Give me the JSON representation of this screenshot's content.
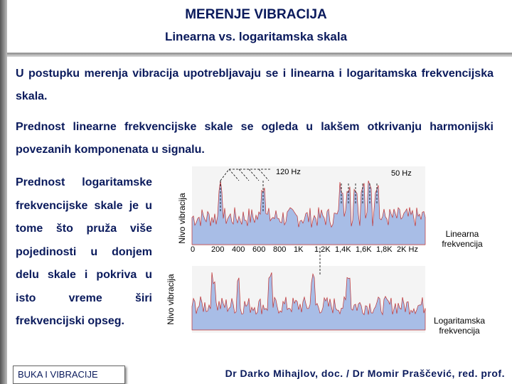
{
  "header": {
    "title": "MERENJE VIBRACIJA",
    "subtitle": "Linearna vs. logaritamska skala"
  },
  "paragraphs": [
    "U postupku merenja vibracija upotrebljavaju se i linearna i logaritamska frekvencijska skala.",
    "Prednost linearne frekvencijske skale se ogleda u lakšem otkrivanju harmonijski povezanih komponenata u signalu.",
    "Prednost logaritamske frekvencijske skale je u tome što pruža više pojedinosti u donjem delu skale i pokriva u isto vreme širi frekvencijski opseg."
  ],
  "figure": {
    "top": {
      "y_label": "Nivo vibracija",
      "annotations": [
        "120 Hz",
        "50 Hz"
      ],
      "x_ticks": [
        "0",
        "200",
        "400",
        "600",
        "800",
        "1K",
        "1,2K",
        "1,4K",
        "1,6K",
        "1,8K",
        "2K Hz"
      ],
      "caption": "Linearna frekvencija"
    },
    "bottom": {
      "y_label": "Nivo vibracija",
      "caption": "Logaritamska frekvencija"
    }
  },
  "footer": {
    "left": "BUKA I VIBRACIJE",
    "right": "Dr Darko Mihajlov, doc. / Dr Momir Praščević, red. prof."
  }
}
